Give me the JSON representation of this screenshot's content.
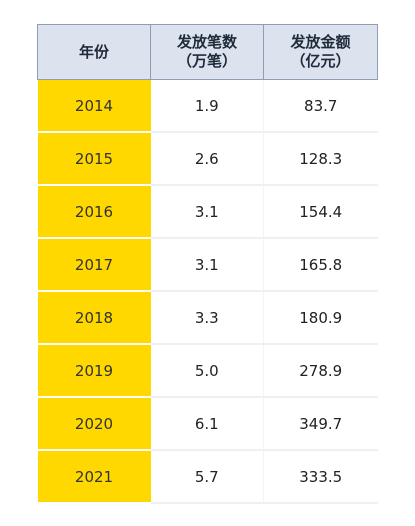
{
  "table": {
    "headers": [
      {
        "line1": "年份",
        "line2": ""
      },
      {
        "line1": "发放笔数",
        "line2": "（万笔）"
      },
      {
        "line1": "发放金额",
        "line2": "（亿元）"
      }
    ],
    "rows": [
      {
        "year": "2014",
        "count": "1.9",
        "amount": "83.7"
      },
      {
        "year": "2015",
        "count": "2.6",
        "amount": "128.3"
      },
      {
        "year": "2016",
        "count": "3.1",
        "amount": "154.4"
      },
      {
        "year": "2017",
        "count": "3.1",
        "amount": "165.8"
      },
      {
        "year": "2018",
        "count": "3.3",
        "amount": "180.9"
      },
      {
        "year": "2019",
        "count": "5.0",
        "amount": "278.9"
      },
      {
        "year": "2020",
        "count": "6.1",
        "amount": "349.7"
      },
      {
        "year": "2021",
        "count": "5.7",
        "amount": "333.5"
      }
    ]
  },
  "colors": {
    "header_bg": "#dce3ef",
    "header_border": "#8e9db6",
    "year_bg": "#ffd800"
  }
}
